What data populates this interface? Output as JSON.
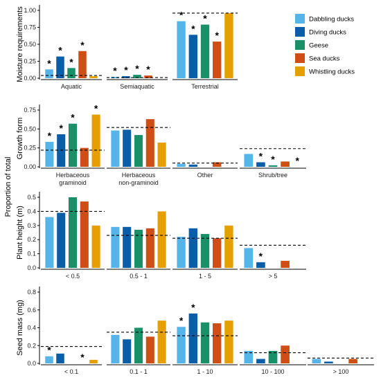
{
  "figure": {
    "ylabel": "Proportion of total",
    "legend": {
      "placement": "top-right",
      "items": [
        {
          "name": "Dabbling ducks",
          "color": "#56B4E9"
        },
        {
          "name": "Diving ducks",
          "color": "#0A5EA8"
        },
        {
          "name": "Geese",
          "color": "#1A9068"
        },
        {
          "name": "Sea ducks",
          "color": "#CF4E16"
        },
        {
          "name": "Whistling ducks",
          "color": "#E69F00"
        }
      ]
    }
  },
  "chart_data": [
    {
      "type": "bar",
      "ylabel": "Moisture requirements",
      "ylim": [
        0,
        1.0
      ],
      "yticks": [
        "0.00",
        "0.25",
        "0.50",
        "0.75",
        "1.00"
      ],
      "grid": false,
      "groups": [
        {
          "label": "Aquatic",
          "values": [
            0.13,
            0.32,
            0.15,
            0.4,
            0.03
          ],
          "stars": [
            true,
            true,
            true,
            true,
            false
          ],
          "reference": 0.04
        },
        {
          "label": "Semiaquatic",
          "values": [
            0.02,
            0.03,
            0.05,
            0.04,
            null
          ],
          "stars": [
            true,
            true,
            true,
            true,
            false
          ],
          "reference": 0.01
        },
        {
          "label": "Terrestrial",
          "values": [
            0.84,
            0.64,
            0.79,
            0.54,
            0.96
          ],
          "stars": [
            true,
            true,
            true,
            true,
            false
          ],
          "reference": 0.96
        }
      ]
    },
    {
      "type": "bar",
      "ylabel": "Growth form",
      "ylim": [
        0,
        0.75
      ],
      "yticks": [
        "0.00",
        "0.25",
        "0.50",
        "0.75"
      ],
      "grid": false,
      "groups": [
        {
          "label": "Herbaceous\ngraminoid",
          "values": [
            0.33,
            0.43,
            0.57,
            0.25,
            0.69
          ],
          "stars": [
            true,
            true,
            true,
            false,
            true
          ],
          "reference": 0.22
        },
        {
          "label": "Herbaceous\nnon-graminoid",
          "values": [
            0.48,
            0.49,
            0.42,
            0.63,
            0.32
          ],
          "stars": [
            false,
            false,
            false,
            false,
            false
          ],
          "reference": 0.52
        },
        {
          "label": "Other",
          "values": [
            0.04,
            0.03,
            null,
            0.06,
            null
          ],
          "stars": [
            false,
            false,
            false,
            false,
            false
          ],
          "reference": 0.05
        },
        {
          "label": "Shrub/tree",
          "values": [
            0.17,
            0.06,
            0.02,
            0.07,
            null
          ],
          "stars": [
            false,
            true,
            true,
            false,
            true
          ],
          "reference": 0.24
        }
      ]
    },
    {
      "type": "bar",
      "ylabel": "Plant height (m)",
      "ylim": [
        0,
        0.5
      ],
      "yticks": [
        "0.0",
        "0.1",
        "0.2",
        "0.3",
        "0.4",
        "0.5"
      ],
      "grid": false,
      "groups": [
        {
          "label": "< 0.5",
          "values": [
            0.36,
            0.39,
            0.5,
            0.47,
            0.3
          ],
          "stars": [
            false,
            false,
            false,
            false,
            false
          ],
          "reference": 0.4
        },
        {
          "label": "0.5 - 1",
          "values": [
            0.29,
            0.29,
            0.27,
            0.28,
            0.4
          ],
          "stars": [
            false,
            false,
            false,
            false,
            false
          ],
          "reference": 0.23
        },
        {
          "label": "1 - 5",
          "values": [
            0.22,
            0.28,
            0.24,
            0.21,
            0.3
          ],
          "stars": [
            false,
            false,
            false,
            false,
            false
          ],
          "reference": 0.21
        },
        {
          "label": "> 5",
          "values": [
            0.14,
            0.04,
            null,
            0.05,
            null
          ],
          "stars": [
            false,
            true,
            false,
            false,
            false
          ],
          "reference": 0.16
        }
      ]
    },
    {
      "type": "bar",
      "ylabel": "Seed mass (mg)",
      "ylim": [
        0,
        0.8
      ],
      "yticks": [
        "0.0",
        "0.2",
        "0.4",
        "0.6",
        "0.8"
      ],
      "grid": false,
      "groups": [
        {
          "label": "< 0.1",
          "values": [
            0.08,
            0.11,
            null,
            null,
            0.04
          ],
          "stars": [
            true,
            false,
            false,
            true,
            false
          ],
          "reference": 0.19
        },
        {
          "label": "0.1 - 1",
          "values": [
            0.32,
            0.27,
            0.4,
            0.3,
            0.48
          ],
          "stars": [
            false,
            false,
            false,
            false,
            false
          ],
          "reference": 0.35
        },
        {
          "label": "1 - 10",
          "values": [
            0.41,
            0.56,
            0.46,
            0.45,
            0.48
          ],
          "stars": [
            true,
            true,
            false,
            false,
            false
          ],
          "reference": 0.31
        },
        {
          "label": "10 - 100",
          "values": [
            0.14,
            0.05,
            0.14,
            0.2,
            null
          ],
          "stars": [
            false,
            false,
            false,
            false,
            false
          ],
          "reference": 0.12
        },
        {
          "label": "> 100",
          "values": [
            0.05,
            0.02,
            null,
            0.05,
            null
          ],
          "stars": [
            false,
            false,
            false,
            false,
            false
          ],
          "reference": 0.06
        }
      ]
    }
  ]
}
